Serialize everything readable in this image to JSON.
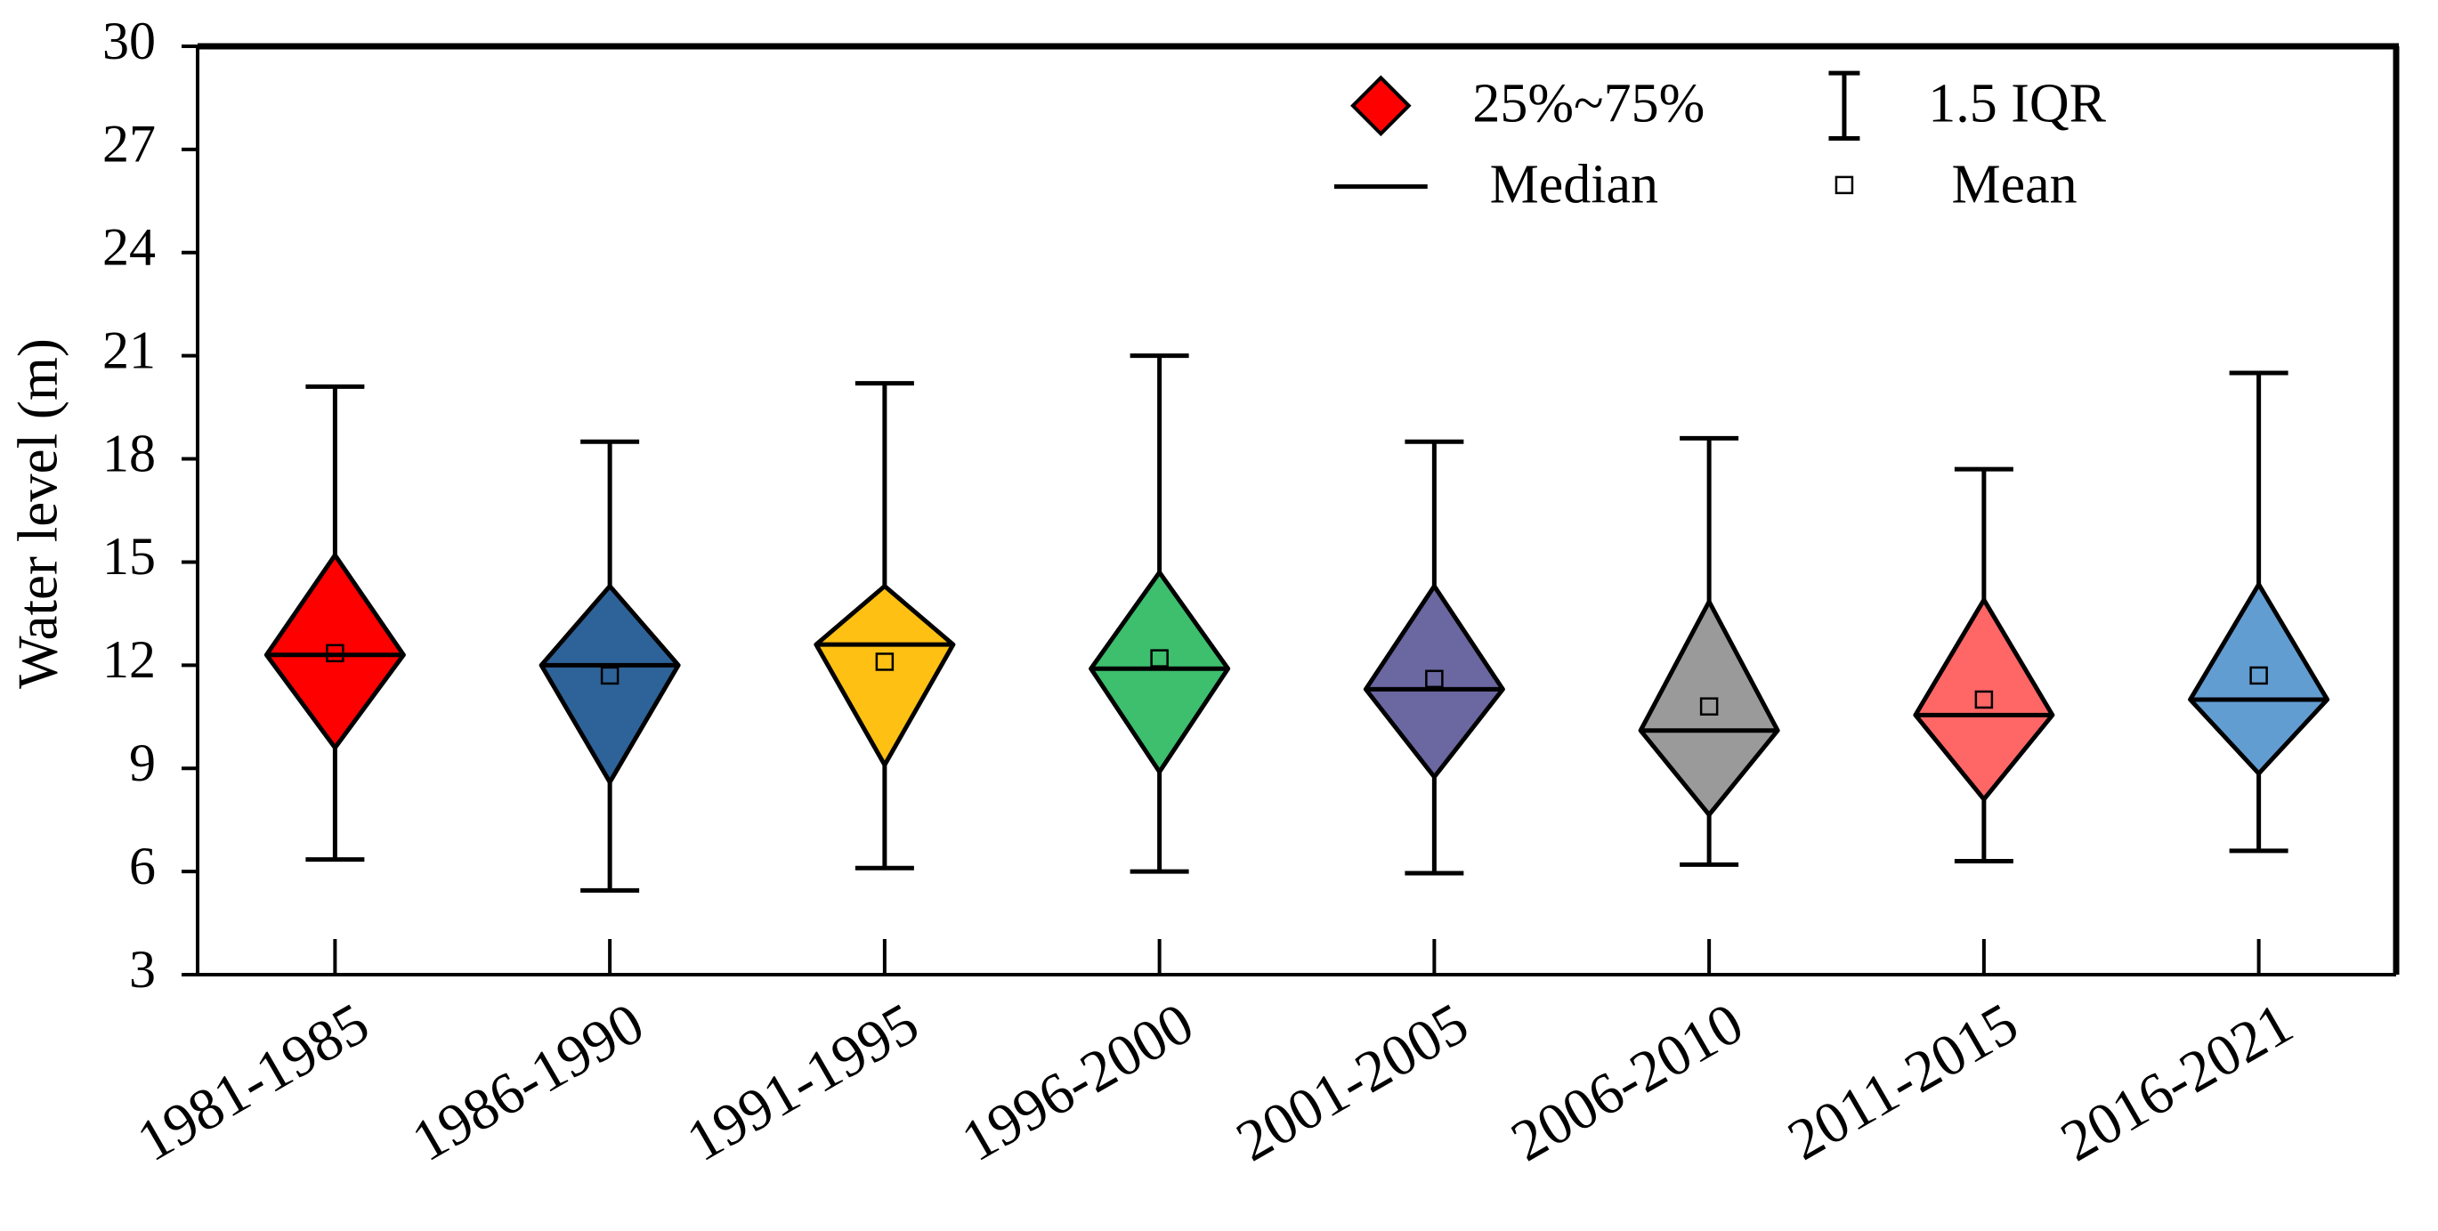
{
  "chart_data": {
    "type": "box",
    "y_label": "Water level (m)",
    "categories": [
      "1981-1985",
      "1986-1990",
      "1991-1995",
      "1996-2000",
      "2001-2005",
      "2006-2010",
      "2011-2015",
      "2016-2021"
    ],
    "whisker_high": [
      20.1,
      18.5,
      20.2,
      21.0,
      18.5,
      18.6,
      17.7,
      20.5
    ],
    "q3": [
      15.2,
      14.3,
      14.3,
      14.7,
      14.3,
      13.85,
      13.9,
      14.35
    ],
    "median": [
      12.3,
      12.0,
      12.6,
      11.9,
      11.3,
      10.1,
      10.55,
      11.0
    ],
    "q1": [
      9.6,
      8.6,
      9.1,
      8.9,
      8.75,
      7.65,
      8.1,
      8.85
    ],
    "whisker_low": [
      6.35,
      5.45,
      6.1,
      6.0,
      5.95,
      6.2,
      6.3,
      6.6
    ],
    "mean": [
      12.35,
      11.7,
      12.1,
      12.2,
      11.6,
      10.8,
      11.0,
      11.7
    ],
    "colors": [
      "#ff0000",
      "#2e6399",
      "#ffc014",
      "#3dbf6e",
      "#6a67a1",
      "#9a9a9a",
      "#ff6666",
      "#629dd2"
    ],
    "ylim": [
      3,
      30
    ],
    "yticks": [
      3,
      6,
      9,
      12,
      15,
      18,
      21,
      24,
      27,
      30
    ],
    "legend": {
      "box": "25%~75%",
      "whisker": "1.5 IQR",
      "median": "Median",
      "mean": "Mean"
    }
  }
}
